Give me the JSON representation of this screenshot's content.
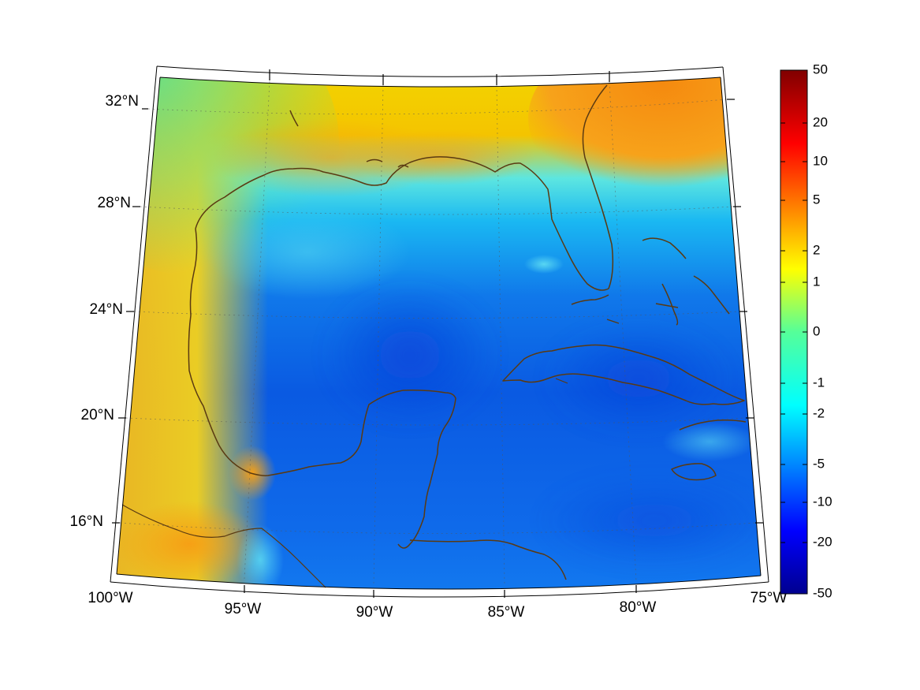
{
  "map": {
    "projection": "conic",
    "lon_range": [
      -100,
      -75
    ],
    "lat_range": [
      14,
      33
    ],
    "colormap": "jet",
    "coastline_color": "#5a3a12",
    "lat_labels": [
      "32°N",
      "28°N",
      "24°N",
      "20°N",
      "16°N"
    ],
    "lon_labels": [
      "100°W",
      "95°W",
      "90°W",
      "85°W",
      "80°W",
      "75°W"
    ],
    "regions": [
      "Gulf of Mexico",
      "Florida",
      "Cuba",
      "Yucatan Peninsula",
      "Bahamas",
      "Jamaica"
    ]
  },
  "colorbar": {
    "scale": "symmetric-log",
    "ticks": [
      "50",
      "20",
      "10",
      "5",
      "2",
      "1",
      "0",
      "-1",
      "-2",
      "-5",
      "-10",
      "-20",
      "-50"
    ],
    "min": -50,
    "max": 50
  }
}
